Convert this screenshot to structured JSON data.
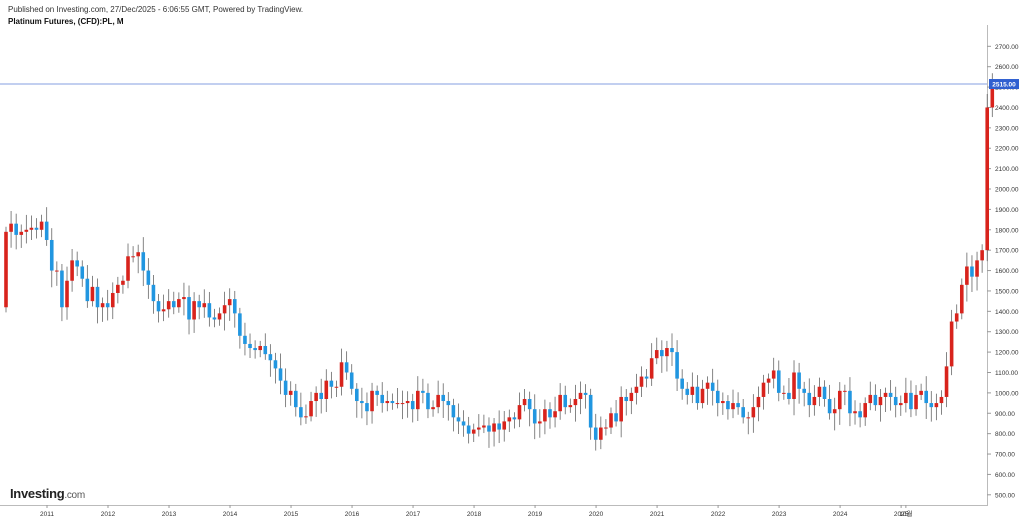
{
  "header": {
    "published": "Published on Investing.com, 27/Dec/2025 - 6:06:55 GMT, Powered by TradingView.",
    "symbol": "Platinum Futures, (CFD):PL, M"
  },
  "logo": {
    "main": "Investing",
    "suffix": ".com"
  },
  "colors": {
    "up": "#d8231c",
    "down": "#2196e0",
    "wick": "#666666",
    "priceLine": "#5b7fd9",
    "priceTag": "#2f5fd0"
  },
  "chart_data": {
    "type": "candlestick",
    "title": "Platinum Futures, (CFD):PL, M",
    "ylim": [
      450,
      2780
    ],
    "y_ticks": [
      500,
      600,
      700,
      800,
      900,
      1000,
      1100,
      1200,
      1300,
      1400,
      1500,
      1600,
      1700,
      1800,
      1900,
      2000,
      2100,
      2200,
      2300,
      2400,
      2500,
      2600,
      2700
    ],
    "y_tick_labels": [
      "500.00",
      "600.00",
      "700.00",
      "800.00",
      "900.00",
      "1000.00",
      "1100.00",
      "1200.00",
      "1300.00",
      "1400.00",
      "1500.00",
      "1600.00",
      "1700.00",
      "1800.00",
      "1900.00",
      "2000.00",
      "2100.00",
      "2200.00",
      "2300.00",
      "2400.00",
      "2500.00",
      "2600.00",
      "2700.00"
    ],
    "x_labels": [
      "2011",
      "2012",
      "2013",
      "2014",
      "2015",
      "2016",
      "2017",
      "2018",
      "2019",
      "2020",
      "2021",
      "2022",
      "2023",
      "2024",
      "2025",
      "10월"
    ],
    "last_price": 2515,
    "last_price_label": "2515.00",
    "grid": false,
    "start": "2011-01",
    "closes": [
      1790,
      1830,
      1775,
      1790,
      1800,
      1810,
      1800,
      1840,
      1750,
      1600,
      1600,
      1420,
      1550,
      1650,
      1620,
      1560,
      1450,
      1520,
      1420,
      1440,
      1420,
      1490,
      1530,
      1550,
      1670,
      1670,
      1690,
      1600,
      1530,
      1450,
      1400,
      1410,
      1450,
      1420,
      1460,
      1470,
      1360,
      1450,
      1420,
      1440,
      1370,
      1360,
      1390,
      1430,
      1460,
      1390,
      1280,
      1240,
      1220,
      1210,
      1230,
      1190,
      1160,
      1120,
      1060,
      990,
      1010,
      930,
      880,
      885,
      960,
      1000,
      970,
      1060,
      1030,
      1030,
      1150,
      1100,
      1020,
      960,
      950,
      910,
      1010,
      990,
      950,
      960,
      950,
      950,
      950,
      960,
      920,
      1010,
      1000,
      920,
      930,
      990,
      960,
      940,
      880,
      860,
      840,
      800,
      820,
      830,
      840,
      810,
      850,
      820,
      860,
      880,
      870,
      940,
      970,
      920,
      850,
      860,
      920,
      880,
      910,
      990,
      930,
      940,
      970,
      1000,
      990,
      830,
      770,
      830,
      830,
      900,
      860,
      980,
      960,
      1000,
      1030,
      1080,
      1070,
      1170,
      1210,
      1180,
      1220,
      1200,
      1070,
      1020,
      990,
      1030,
      950,
      1020,
      1050,
      1010,
      950,
      960,
      920,
      950,
      930,
      880,
      880,
      930,
      980,
      1050,
      1070,
      1110,
      1000,
      1000,
      970,
      1100,
      1020,
      1000,
      940,
      980,
      1030,
      970,
      900,
      920,
      1010,
      1010,
      900,
      910,
      880,
      950,
      990,
      940,
      980,
      1000,
      980,
      940,
      950,
      1000,
      920,
      990,
      1010,
      950,
      930,
      950,
      980,
      1130,
      1350,
      1390,
      1530,
      1620,
      1570,
      1650,
      1700,
      2400,
      2515
    ]
  }
}
